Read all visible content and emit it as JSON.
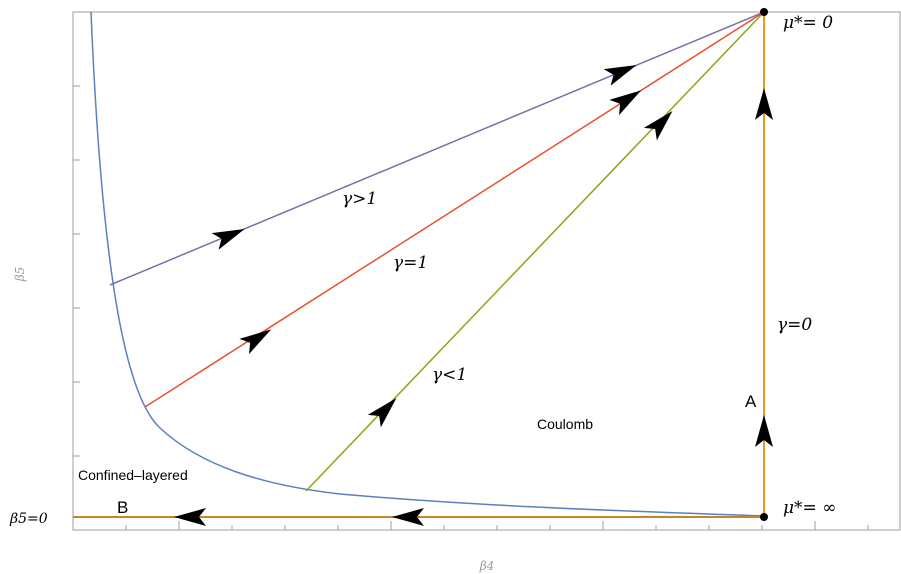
{
  "axes": {
    "x_title": "β4",
    "y_title": "β5",
    "baseline_label": "β5=0"
  },
  "regions": {
    "confined": "Confined–layered",
    "coulomb": "Coulomb"
  },
  "trajectories": [
    {
      "id": "gamma-gt-1",
      "label": "γ>1",
      "color": "#7e6eaa"
    },
    {
      "id": "gamma-eq-1",
      "label": "γ=1",
      "color": "#e8522c"
    },
    {
      "id": "gamma-lt-1",
      "label": "γ<1",
      "color": "#8aa617"
    },
    {
      "id": "gamma-0",
      "label": "γ=0",
      "color": "#e69b1e"
    }
  ],
  "boundary_curve_color": "#5b7fbf",
  "axis_line_color": "#c7852b",
  "fixed_points": {
    "top": "μ*= 0",
    "bottom": "μ*= ∞"
  },
  "markers": {
    "a": "A",
    "b": "B"
  }
}
